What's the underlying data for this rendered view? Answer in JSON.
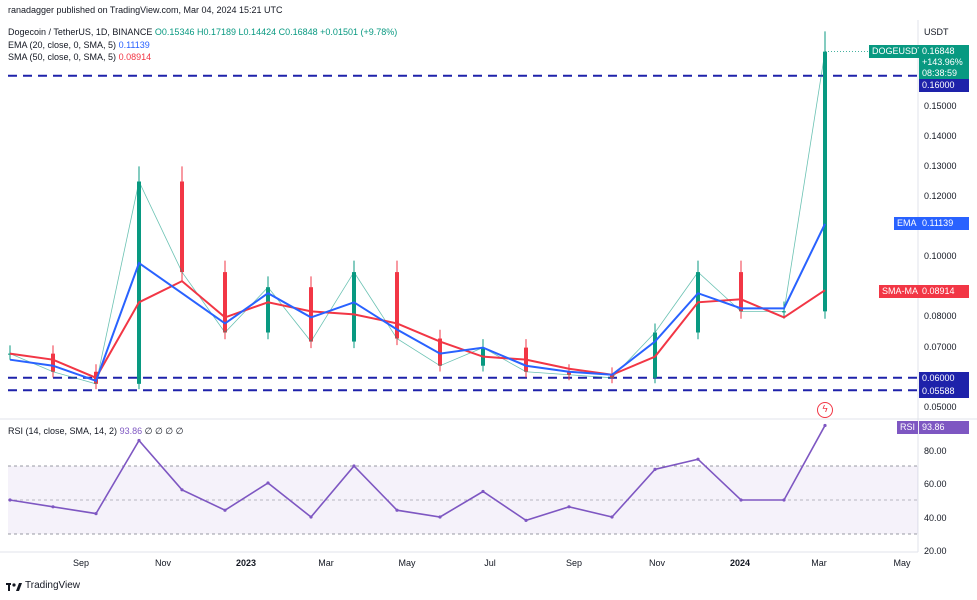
{
  "header": {
    "publisher": "ranadagger published on TradingView.com, Mar 04, 2024 15:21 UTC",
    "symbol": "Dogecoin / TetherUS, 1D, BINANCE",
    "ohlc": {
      "o": "O0.15346",
      "h": "H0.17189",
      "l": "L0.14424",
      "c": "C0.16848",
      "chg": "+0.01501 (+9.78%)"
    },
    "ema_label": "EMA (20, close, 0, SMA, 5)",
    "ema_value": "0.11139",
    "sma_label": "SMA (50, close, 0, SMA, 5)",
    "sma_value": "0.08914",
    "rsi_label": "RSI (14, close, SMA, 14, 2)",
    "rsi_value": "93.86",
    "rsi_extra": "∅ ∅ ∅ ∅"
  },
  "axis": {
    "currency": "USDT",
    "price_ticks": [
      "0.15000",
      "0.14000",
      "0.13000",
      "0.12000",
      "0.10000",
      "0.08000",
      "0.07000",
      "0.05000"
    ],
    "rsi_ticks": [
      "80.00",
      "60.00",
      "40.00",
      "20.00"
    ],
    "x_ticks": [
      "Sep",
      "Nov",
      "2023",
      "Mar",
      "May",
      "Jul",
      "Sep",
      "Nov",
      "2024",
      "Mar",
      "May"
    ]
  },
  "tags": {
    "symbol": "DOGEUSDT",
    "price": "0.16848",
    "change": "+143.96%",
    "countdown": "08:38:59",
    "level_high": "0.16000",
    "level_low1": "0.06000",
    "level_low2": "0.05588",
    "ema": "EMA",
    "ema_val": "0.11139",
    "sma": "SMA-MA",
    "sma_val": "0.08914",
    "rsi": "RSI",
    "rsi_val": "93.86"
  },
  "footer": {
    "brand": "TradingView"
  },
  "colors": {
    "up": "#089981",
    "down": "#f23645",
    "ema": "#2962ff",
    "sma": "#f23645",
    "level": "#1e22aa",
    "rsi": "#7e57c2"
  },
  "chart_data": {
    "type": "line",
    "title": "Dogecoin / TetherUS, 1D, BINANCE",
    "x": [
      "2022-08",
      "2022-09",
      "2022-10",
      "2022-11",
      "2022-12",
      "2023-01",
      "2023-02",
      "2023-03",
      "2023-04",
      "2023-05",
      "2023-06",
      "2023-07",
      "2023-08",
      "2023-09",
      "2023-10",
      "2023-11",
      "2023-12",
      "2024-01",
      "2024-02",
      "2024-03"
    ],
    "series": [
      {
        "name": "DOGEUSDT",
        "values": [
          0.068,
          0.062,
          0.058,
          0.125,
          0.095,
          0.075,
          0.09,
          0.072,
          0.095,
          0.073,
          0.064,
          0.07,
          0.062,
          0.061,
          0.06,
          0.075,
          0.095,
          0.082,
          0.082,
          0.168
        ]
      },
      {
        "name": "EMA (20)",
        "values": [
          0.066,
          0.064,
          0.059,
          0.098,
          0.088,
          0.078,
          0.088,
          0.08,
          0.085,
          0.076,
          0.068,
          0.07,
          0.064,
          0.062,
          0.061,
          0.072,
          0.088,
          0.083,
          0.083,
          0.111
        ]
      },
      {
        "name": "SMA (50)",
        "values": [
          0.068,
          0.066,
          0.06,
          0.085,
          0.092,
          0.08,
          0.085,
          0.082,
          0.081,
          0.078,
          0.072,
          0.067,
          0.066,
          0.063,
          0.061,
          0.067,
          0.085,
          0.086,
          0.08,
          0.089
        ]
      }
    ],
    "levels": [
      0.16,
      0.06,
      0.05588
    ],
    "ylim": [
      0.05,
      0.17
    ],
    "rsi": {
      "name": "RSI (14)",
      "values": [
        50,
        46,
        42,
        85,
        56,
        44,
        60,
        40,
        70,
        44,
        40,
        55,
        38,
        46,
        40,
        68,
        74,
        50,
        50,
        93.86
      ],
      "ylim": [
        20,
        95
      ],
      "bands": [
        70,
        50,
        30
      ]
    }
  }
}
